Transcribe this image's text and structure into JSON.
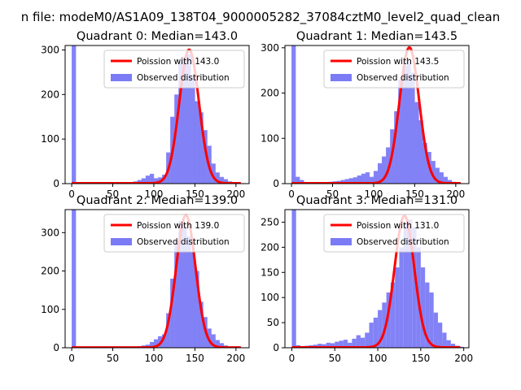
{
  "title": "n file: modeM0/AS1A09_138T04_9000005282_37084cztM0_level2_quad_clean",
  "colors": {
    "hist": "#7b7bf5",
    "fit": "#ff0000",
    "axes": "#000000"
  },
  "legend": {
    "observed_label": "Observed distribution"
  },
  "chart_data": [
    {
      "type": "bar",
      "title": "Quadrant 0: Median=143.0",
      "fit_label": "Poission with 143.0",
      "median": 143.0,
      "xlim": [
        -8,
        216
      ],
      "ylim": [
        0,
        310
      ],
      "xticks": [
        0,
        50,
        100,
        150,
        200
      ],
      "yticks": [
        0,
        100,
        200,
        300
      ],
      "legend_loc": "upper right",
      "bin_width": 5.2,
      "hist_x": [
        0,
        5,
        10,
        15,
        20,
        25,
        30,
        35,
        40,
        45,
        50,
        55,
        60,
        65,
        70,
        75,
        80,
        85,
        90,
        95,
        100,
        105,
        110,
        115,
        120,
        125,
        130,
        135,
        140,
        145,
        150,
        155,
        160,
        165,
        170,
        175,
        180,
        185,
        190,
        195,
        200,
        205
      ],
      "hist_y": [
        315,
        2,
        1,
        1,
        1,
        1,
        1,
        1,
        1,
        1,
        2,
        1,
        2,
        2,
        3,
        5,
        8,
        12,
        18,
        22,
        12,
        14,
        20,
        70,
        150,
        200,
        275,
        285,
        290,
        240,
        185,
        160,
        120,
        85,
        45,
        25,
        15,
        10,
        5,
        3,
        2,
        1
      ],
      "fit_peak": 300
    },
    {
      "type": "bar",
      "title": "Quadrant 1: Median=143.5",
      "fit_label": "Poission with 143.5",
      "median": 143.5,
      "xlim": [
        -8,
        216
      ],
      "ylim": [
        0,
        305
      ],
      "xticks": [
        0,
        50,
        100,
        150,
        200
      ],
      "yticks": [
        0,
        100,
        200,
        300
      ],
      "legend_loc": "upper right",
      "bin_width": 5.2,
      "hist_x": [
        0,
        5,
        10,
        15,
        20,
        25,
        30,
        35,
        40,
        45,
        50,
        55,
        60,
        65,
        70,
        75,
        80,
        85,
        90,
        95,
        100,
        105,
        110,
        115,
        120,
        125,
        130,
        135,
        140,
        145,
        150,
        155,
        160,
        165,
        170,
        175,
        180,
        185,
        190,
        195,
        200,
        205
      ],
      "hist_y": [
        305,
        15,
        8,
        3,
        2,
        2,
        1,
        2,
        3,
        4,
        5,
        6,
        8,
        10,
        12,
        14,
        18,
        22,
        25,
        15,
        28,
        45,
        60,
        80,
        120,
        160,
        230,
        260,
        270,
        245,
        180,
        140,
        90,
        70,
        50,
        35,
        25,
        15,
        8,
        4,
        2,
        1
      ],
      "fit_peak": 300
    },
    {
      "type": "bar",
      "title": "Quadrant 2: Median=139.0",
      "fit_label": "Poission with 139.0",
      "median": 139.0,
      "xlim": [
        -8,
        216
      ],
      "ylim": [
        0,
        360
      ],
      "xticks": [
        0,
        50,
        100,
        150,
        200
      ],
      "yticks": [
        0,
        100,
        200,
        300
      ],
      "legend_loc": "upper right",
      "bin_width": 5.2,
      "hist_x": [
        0,
        5,
        10,
        15,
        20,
        25,
        30,
        35,
        40,
        45,
        50,
        55,
        60,
        65,
        70,
        75,
        80,
        85,
        90,
        95,
        100,
        105,
        110,
        115,
        120,
        125,
        130,
        135,
        140,
        145,
        150,
        155,
        160,
        165,
        170,
        175,
        180,
        185,
        190,
        195,
        200,
        205
      ],
      "hist_y": [
        360,
        1,
        1,
        1,
        1,
        1,
        1,
        1,
        1,
        1,
        1,
        1,
        1,
        2,
        2,
        3,
        4,
        6,
        8,
        15,
        22,
        30,
        35,
        90,
        180,
        280,
        330,
        320,
        290,
        250,
        200,
        120,
        80,
        50,
        35,
        20,
        12,
        6,
        3,
        2,
        1,
        1
      ],
      "fit_peak": 345
    },
    {
      "type": "bar",
      "title": "Quadrant 3: Median=131.0",
      "fit_label": "Poission with 131.0",
      "median": 131.0,
      "xlim": [
        -8,
        206
      ],
      "ylim": [
        0,
        275
      ],
      "xticks": [
        0,
        50,
        100,
        150,
        200
      ],
      "yticks": [
        0,
        50,
        100,
        150,
        200,
        250
      ],
      "legend_loc": "upper right",
      "bin_width": 5.0,
      "hist_x": [
        0,
        5,
        10,
        15,
        20,
        25,
        30,
        35,
        40,
        45,
        50,
        55,
        60,
        65,
        70,
        75,
        80,
        85,
        90,
        95,
        100,
        105,
        110,
        115,
        120,
        125,
        130,
        135,
        140,
        145,
        150,
        155,
        160,
        165,
        170,
        175,
        180,
        185,
        190,
        195
      ],
      "hist_y": [
        275,
        5,
        3,
        4,
        5,
        6,
        8,
        7,
        10,
        9,
        12,
        14,
        16,
        10,
        18,
        25,
        20,
        30,
        50,
        60,
        75,
        90,
        110,
        130,
        160,
        200,
        250,
        255,
        240,
        200,
        160,
        130,
        110,
        70,
        50,
        30,
        15,
        8,
        4,
        2
      ],
      "fit_peak": 262
    }
  ]
}
